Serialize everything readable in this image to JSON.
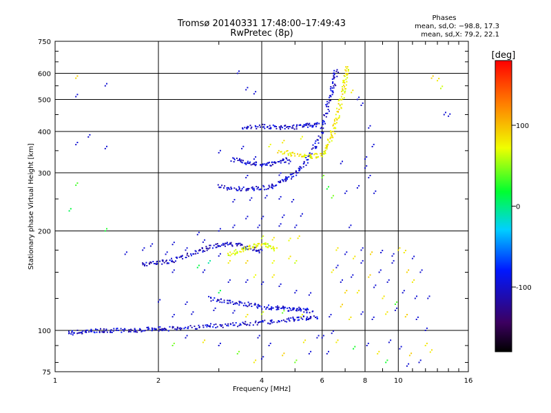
{
  "header": {
    "title_line1": "Tromsø 20140331 17:48:00–17:49:43",
    "title_line2": "RwPretec (8p)",
    "stats_title": "Phases",
    "stats_o": "mean, sd,O: −98.8, 17.3",
    "stats_x": "mean, sd,X:  79.2, 22.1"
  },
  "chart_data": {
    "type": "scatter",
    "xlabel": "Frequency [MHz]",
    "ylabel": "Stationary phase Virtual Height [km]",
    "x_scale": "log",
    "y_scale": "log",
    "xlim": [
      1,
      16
    ],
    "ylim": [
      75,
      750
    ],
    "x_ticks": [
      1,
      2,
      4,
      6,
      8,
      10,
      16
    ],
    "y_ticks": [
      75,
      100,
      200,
      300,
      400,
      500,
      600,
      750
    ],
    "grid": true,
    "colorbar": {
      "label": "[deg]",
      "range": [
        -180,
        180
      ],
      "ticks": [
        -100,
        0,
        100
      ]
    },
    "traces": [
      {
        "name": "ground-level O echoes",
        "phase": -100,
        "points": [
          [
            1.1,
            98
          ],
          [
            1.2,
            99
          ],
          [
            1.35,
            100
          ],
          [
            1.5,
            100
          ],
          [
            1.7,
            100
          ],
          [
            1.9,
            101
          ],
          [
            2.1,
            101
          ],
          [
            2.4,
            102
          ],
          [
            2.8,
            103
          ],
          [
            3.2,
            104
          ],
          [
            3.7,
            105
          ],
          [
            4.2,
            106
          ],
          [
            4.8,
            108
          ],
          [
            5.3,
            109
          ],
          [
            5.8,
            110
          ]
        ]
      },
      {
        "name": "E-layer O trace",
        "phase": -105,
        "points": [
          [
            1.8,
            158
          ],
          [
            2.0,
            160
          ],
          [
            2.2,
            163
          ],
          [
            2.5,
            170
          ],
          [
            2.8,
            178
          ],
          [
            3.1,
            182
          ],
          [
            3.4,
            182
          ],
          [
            3.7,
            178
          ],
          [
            4.0,
            174
          ]
        ]
      },
      {
        "name": "F-layer O trace",
        "phase": -100,
        "points": [
          [
            3.0,
            272
          ],
          [
            3.4,
            268
          ],
          [
            3.8,
            268
          ],
          [
            4.2,
            272
          ],
          [
            4.6,
            282
          ],
          [
            5.0,
            298
          ],
          [
            5.4,
            325
          ],
          [
            5.8,
            370
          ],
          [
            6.1,
            430
          ],
          [
            6.3,
            500
          ],
          [
            6.5,
            560
          ],
          [
            6.6,
            620
          ]
        ]
      },
      {
        "name": "F-layer X trace",
        "phase": 80,
        "points": [
          [
            4.5,
            350
          ],
          [
            5.0,
            340
          ],
          [
            5.5,
            335
          ],
          [
            6.0,
            340
          ],
          [
            6.3,
            370
          ],
          [
            6.5,
            410
          ],
          [
            6.7,
            460
          ],
          [
            6.9,
            520
          ],
          [
            7.0,
            570
          ],
          [
            7.1,
            630
          ]
        ]
      },
      {
        "name": "F-layer multi-hop",
        "phase": -100,
        "points": [
          [
            3.3,
            330
          ],
          [
            3.6,
            322
          ],
          [
            4.0,
            318
          ],
          [
            4.4,
            320
          ],
          [
            4.8,
            330
          ]
        ]
      },
      {
        "name": "E-layer X echoes",
        "phase": 70,
        "points": [
          [
            3.2,
            170
          ],
          [
            3.5,
            175
          ],
          [
            3.8,
            180
          ],
          [
            4.1,
            182
          ],
          [
            4.4,
            176
          ]
        ]
      },
      {
        "name": "upper O trace",
        "phase": -100,
        "points": [
          [
            3.5,
            410
          ],
          [
            4.0,
            415
          ],
          [
            4.5,
            412
          ],
          [
            5.0,
            412
          ],
          [
            5.5,
            418
          ],
          [
            5.9,
            420
          ]
        ]
      },
      {
        "name": "mid-height O echoes",
        "phase": -100,
        "points": [
          [
            2.8,
            125
          ],
          [
            3.2,
            122
          ],
          [
            3.6,
            120
          ],
          [
            4.0,
            118
          ],
          [
            4.4,
            117
          ],
          [
            4.8,
            116
          ],
          [
            5.2,
            116
          ],
          [
            5.6,
            114
          ]
        ]
      }
    ],
    "scatter": [
      [
        1.15,
        580,
        90
      ],
      [
        1.15,
        510,
        -100
      ],
      [
        1.4,
        550,
        -100
      ],
      [
        1.25,
        385,
        -100
      ],
      [
        1.15,
        365,
        -100
      ],
      [
        1.4,
        355,
        -100
      ],
      [
        1.4,
        200,
        20
      ],
      [
        1.15,
        275,
        30
      ],
      [
        1.1,
        230,
        10
      ],
      [
        3.4,
        600,
        -100
      ],
      [
        3.6,
        535,
        -100
      ],
      [
        3.8,
        520,
        -100
      ],
      [
        12.5,
        580,
        90
      ],
      [
        13.0,
        570,
        80
      ],
      [
        13.3,
        540,
        60
      ],
      [
        13.6,
        450,
        -100
      ],
      [
        14.0,
        445,
        -100
      ],
      [
        7.3,
        525,
        80
      ],
      [
        7.6,
        500,
        -100
      ],
      [
        7.8,
        480,
        -100
      ],
      [
        8.2,
        410,
        -100
      ],
      [
        8.4,
        360,
        -100
      ],
      [
        8.0,
        330,
        -100
      ],
      [
        8.2,
        290,
        -100
      ],
      [
        8.5,
        260,
        -100
      ],
      [
        6.2,
        268,
        20
      ],
      [
        6.4,
        252,
        40
      ],
      [
        7.0,
        260,
        -100
      ],
      [
        7.6,
        270,
        -100
      ],
      [
        8.0,
        310,
        -100
      ],
      [
        6.8,
        320,
        -100
      ],
      [
        6.0,
        290,
        40
      ],
      [
        7.2,
        205,
        -100
      ],
      [
        3.5,
        355,
        -100
      ],
      [
        3.0,
        345,
        -100
      ],
      [
        3.8,
        330,
        -100
      ],
      [
        4.8,
        320,
        -100
      ],
      [
        5.1,
        300,
        -100
      ],
      [
        4.5,
        295,
        -100
      ],
      [
        3.6,
        290,
        -100
      ],
      [
        4.2,
        360,
        70
      ],
      [
        4.6,
        370,
        80
      ],
      [
        5.2,
        380,
        70
      ],
      [
        3.3,
        245,
        -100
      ],
      [
        3.7,
        248,
        -100
      ],
      [
        4.1,
        252,
        -100
      ],
      [
        4.5,
        250,
        -100
      ],
      [
        4.9,
        245,
        -100
      ],
      [
        5.2,
        222,
        -100
      ],
      [
        4.6,
        220,
        -100
      ],
      [
        4.0,
        218,
        -100
      ],
      [
        3.6,
        218,
        -100
      ],
      [
        3.3,
        205,
        -100
      ],
      [
        3.9,
        205,
        -100
      ],
      [
        4.5,
        207,
        -100
      ],
      [
        5.0,
        205,
        -100
      ],
      [
        3.0,
        200,
        -100
      ],
      [
        4.3,
        188,
        80
      ],
      [
        4.8,
        187,
        70
      ],
      [
        5.1,
        190,
        80
      ],
      [
        4.0,
        190,
        60
      ],
      [
        3.0,
        168,
        -100
      ],
      [
        3.2,
        160,
        80
      ],
      [
        2.6,
        155,
        10
      ],
      [
        2.8,
        160,
        -10
      ],
      [
        2.2,
        150,
        -100
      ],
      [
        2.7,
        150,
        -100
      ],
      [
        3.6,
        160,
        90
      ],
      [
        4.3,
        160,
        70
      ],
      [
        4.8,
        165,
        80
      ],
      [
        5.0,
        160,
        60
      ],
      [
        3.2,
        140,
        -100
      ],
      [
        3.6,
        140,
        -100
      ],
      [
        4.0,
        138,
        -100
      ],
      [
        4.5,
        136,
        -100
      ],
      [
        5.0,
        130,
        -100
      ],
      [
        5.5,
        128,
        -100
      ],
      [
        4.3,
        145,
        80
      ],
      [
        3.8,
        145,
        70
      ],
      [
        3.0,
        130,
        10
      ],
      [
        2.2,
        110,
        -100
      ],
      [
        2.5,
        112,
        -100
      ],
      [
        2.9,
        115,
        -100
      ],
      [
        3.3,
        113,
        -100
      ],
      [
        3.6,
        110,
        80
      ],
      [
        4.0,
        112,
        60
      ],
      [
        4.6,
        113,
        40
      ],
      [
        5.2,
        110,
        70
      ],
      [
        2.4,
        120,
        -100
      ],
      [
        2.0,
        122,
        -100
      ],
      [
        1.8,
        175,
        -100
      ],
      [
        1.9,
        180,
        -100
      ],
      [
        2.1,
        170,
        -100
      ],
      [
        2.6,
        195,
        -100
      ],
      [
        2.7,
        185,
        -100
      ],
      [
        2.4,
        175,
        -100
      ],
      [
        1.6,
        170,
        -100
      ],
      [
        2.2,
        182,
        -100
      ],
      [
        6.4,
        150,
        80
      ],
      [
        6.6,
        155,
        -100
      ],
      [
        6.8,
        140,
        -100
      ],
      [
        7.0,
        130,
        90
      ],
      [
        7.3,
        145,
        -100
      ],
      [
        7.6,
        130,
        80
      ],
      [
        7.8,
        160,
        -100
      ],
      [
        8.2,
        145,
        90
      ],
      [
        8.5,
        135,
        -100
      ],
      [
        8.8,
        150,
        -100
      ],
      [
        9.0,
        125,
        80
      ],
      [
        9.3,
        140,
        -100
      ],
      [
        9.6,
        160,
        -100
      ],
      [
        9.8,
        120,
        30
      ],
      [
        10.3,
        130,
        -100
      ],
      [
        10.6,
        150,
        90
      ],
      [
        11.0,
        140,
        80
      ],
      [
        11.2,
        125,
        -100
      ],
      [
        11.6,
        150,
        -100
      ],
      [
        12.2,
        125,
        -100
      ],
      [
        6.3,
        110,
        -100
      ],
      [
        6.8,
        118,
        90
      ],
      [
        7.2,
        108,
        80
      ],
      [
        7.8,
        112,
        -100
      ],
      [
        8.4,
        108,
        -100
      ],
      [
        9.2,
        112,
        80
      ],
      [
        9.8,
        115,
        -100
      ],
      [
        10.5,
        110,
        90
      ],
      [
        11.3,
        108,
        -100
      ],
      [
        12.0,
        100,
        -100
      ],
      [
        6.0,
        95,
        -100
      ],
      [
        6.6,
        92,
        80
      ],
      [
        7.4,
        88,
        20
      ],
      [
        8.1,
        90,
        -100
      ],
      [
        8.7,
        85,
        80
      ],
      [
        9.4,
        92,
        -100
      ],
      [
        10.1,
        88,
        -100
      ],
      [
        10.8,
        84,
        90
      ],
      [
        11.5,
        80,
        -100
      ],
      [
        12.4,
        86,
        80
      ],
      [
        4.0,
        82,
        -100
      ],
      [
        4.6,
        84,
        90
      ],
      [
        5.0,
        80,
        40
      ],
      [
        5.5,
        85,
        -100
      ],
      [
        3.4,
        85,
        40
      ],
      [
        3.8,
        80,
        80
      ],
      [
        6.2,
        85,
        -100
      ],
      [
        9.2,
        80,
        20
      ],
      [
        10.6,
        78,
        -100
      ],
      [
        12.0,
        90,
        80
      ],
      [
        6.6,
        175,
        80
      ],
      [
        7.0,
        170,
        -100
      ],
      [
        7.4,
        165,
        80
      ],
      [
        7.8,
        175,
        -100
      ],
      [
        8.3,
        170,
        90
      ],
      [
        8.9,
        172,
        -100
      ],
      [
        9.6,
        168,
        -100
      ],
      [
        10.4,
        172,
        80
      ],
      [
        11.0,
        165,
        -100
      ],
      [
        10.0,
        175,
        80
      ],
      [
        2.4,
        95,
        -100
      ],
      [
        2.7,
        92,
        80
      ],
      [
        3.0,
        90,
        -100
      ],
      [
        2.2,
        90,
        40
      ],
      [
        3.9,
        95,
        -100
      ],
      [
        4.2,
        90,
        -100
      ],
      [
        5.3,
        92,
        80
      ],
      [
        5.8,
        95,
        -100
      ],
      [
        6.4,
        98,
        -100
      ]
    ]
  }
}
